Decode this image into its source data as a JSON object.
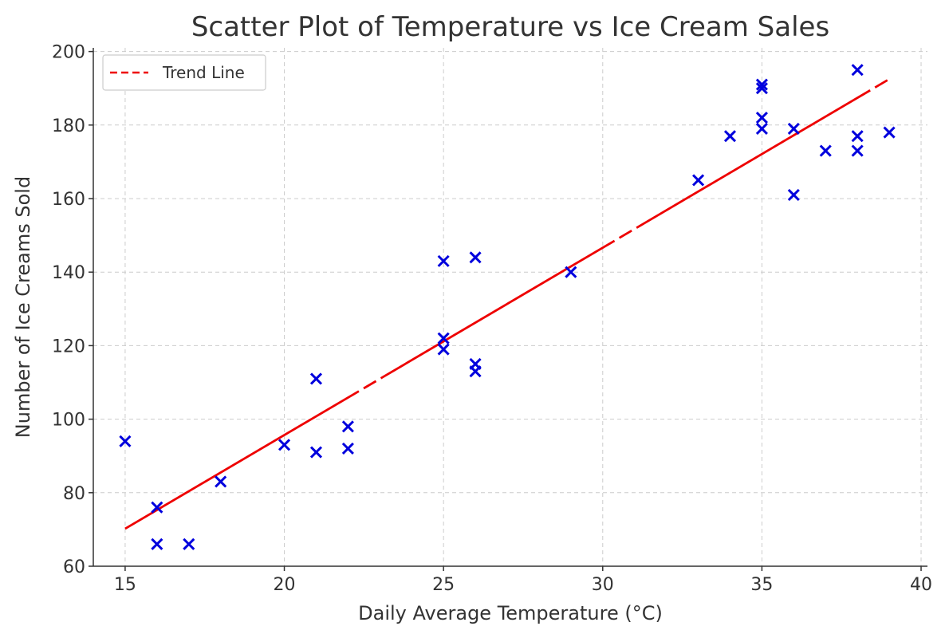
{
  "chart_data": {
    "type": "scatter",
    "title": "Scatter Plot of Temperature vs Ice Cream Sales",
    "xlabel": "Daily Average Temperature (°C)",
    "ylabel": "Number of Ice Creams Sold",
    "xlim": [
      14,
      40.2
    ],
    "ylim": [
      60,
      201
    ],
    "xticks": [
      15,
      20,
      25,
      30,
      35,
      40
    ],
    "yticks": [
      60,
      80,
      100,
      120,
      140,
      160,
      180,
      200
    ],
    "grid": true,
    "legend_position": "top-left",
    "colors": {
      "points": "#0000dd",
      "trend": "#ee0000"
    },
    "points": [
      [
        15,
        94
      ],
      [
        16,
        76
      ],
      [
        16,
        66
      ],
      [
        17,
        66
      ],
      [
        18,
        83
      ],
      [
        20,
        93
      ],
      [
        21,
        111
      ],
      [
        21,
        91
      ],
      [
        22,
        98
      ],
      [
        22,
        92
      ],
      [
        25,
        143
      ],
      [
        25,
        122
      ],
      [
        25,
        119
      ],
      [
        26,
        144
      ],
      [
        26,
        115
      ],
      [
        26,
        113
      ],
      [
        29,
        140
      ],
      [
        33,
        165
      ],
      [
        34,
        177
      ],
      [
        35,
        191
      ],
      [
        35,
        190
      ],
      [
        35,
        182
      ],
      [
        35,
        179
      ],
      [
        36,
        179
      ],
      [
        36,
        161
      ],
      [
        37,
        173
      ],
      [
        38,
        195
      ],
      [
        38,
        177
      ],
      [
        38,
        173
      ],
      [
        39,
        178
      ]
    ],
    "trend_line": {
      "name": "Trend Line",
      "x": [
        15,
        39
      ],
      "y": [
        70.2,
        192.5
      ]
    }
  }
}
